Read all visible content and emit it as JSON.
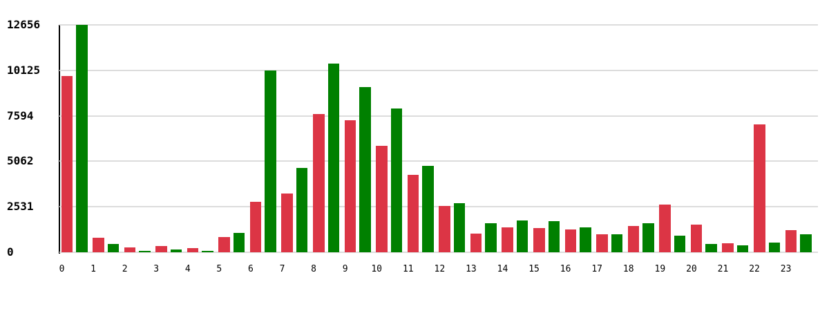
{
  "chart_data": {
    "type": "bar",
    "title": "",
    "xlabel": "",
    "ylabel": "",
    "categories": [
      "0",
      "1",
      "2",
      "3",
      "4",
      "5",
      "6",
      "7",
      "8",
      "9",
      "10",
      "11",
      "12",
      "13",
      "14",
      "15",
      "16",
      "17",
      "18",
      "19",
      "20",
      "21",
      "22",
      "23"
    ],
    "y_ticks": [
      0,
      2531,
      5062,
      7594,
      10125,
      12656
    ],
    "ylim": [
      0,
      12656
    ],
    "grid": true,
    "legend": "none",
    "series": [
      {
        "name": "red",
        "color": "#dc3545",
        "values": [
          9800,
          820,
          280,
          350,
          250,
          840,
          2820,
          3270,
          7700,
          7330,
          5920,
          4310,
          2580,
          1040,
          1390,
          1350,
          1260,
          1000,
          1480,
          2660,
          1530,
          500,
          7120,
          1240
        ]
      },
      {
        "name": "green",
        "color": "#008000",
        "values": [
          12656,
          480,
          70,
          140,
          80,
          1090,
          10100,
          4700,
          10500,
          9200,
          8000,
          4810,
          2730,
          1610,
          1780,
          1730,
          1400,
          1010,
          1620,
          940,
          450,
          400,
          540,
          990
        ]
      }
    ],
    "colors": {
      "background": "#ffffff",
      "gridline": "#dcdcdc",
      "axis_line": "#000000",
      "tick_text": "#000000"
    }
  }
}
